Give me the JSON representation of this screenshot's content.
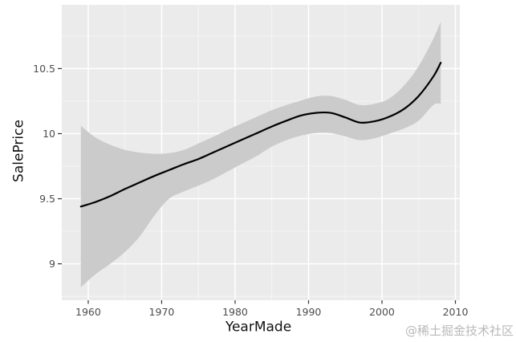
{
  "watermark": {
    "text": "@稀土掘金技术社区"
  },
  "chart_data": {
    "type": "line",
    "title": "",
    "xlabel": "YearMade",
    "ylabel": "SalePrice",
    "legend": false,
    "grid": true,
    "xlim": [
      1956.4,
      2010.6
    ],
    "ylim": [
      8.72,
      10.99
    ],
    "x_ticks": {
      "values": [
        1960,
        1970,
        1980,
        1990,
        2000,
        2010
      ],
      "labels": [
        "1960",
        "1970",
        "1980",
        "1990",
        "2000",
        "2010"
      ]
    },
    "y_ticks": {
      "values": [
        9,
        9.5,
        10,
        10.5
      ],
      "labels": [
        "9",
        "9.5",
        "10",
        "10.5"
      ]
    },
    "x_minor": [
      1965,
      1975,
      1985,
      1995,
      2005
    ],
    "y_minor": [
      8.75,
      9.25,
      9.75,
      10.25,
      10.75
    ],
    "x": [
      1959,
      1961,
      1963,
      1965,
      1967,
      1969,
      1971,
      1973,
      1975,
      1977,
      1979,
      1981,
      1983,
      1985,
      1987,
      1989,
      1991,
      1993,
      1995,
      1997,
      1999,
      2001,
      2003,
      2005,
      2007,
      2008
    ],
    "series": [
      {
        "name": "smooth-fit",
        "values": [
          9.44,
          9.475,
          9.52,
          9.575,
          9.625,
          9.675,
          9.72,
          9.765,
          9.805,
          9.855,
          9.905,
          9.955,
          10.005,
          10.055,
          10.1,
          10.14,
          10.16,
          10.16,
          10.125,
          10.085,
          10.095,
          10.13,
          10.19,
          10.29,
          10.44,
          10.545
        ]
      },
      {
        "name": "ci-upper",
        "values": [
          10.06,
          9.97,
          9.915,
          9.875,
          9.855,
          9.845,
          9.85,
          9.875,
          9.925,
          9.975,
          10.03,
          10.08,
          10.13,
          10.18,
          10.22,
          10.255,
          10.285,
          10.29,
          10.26,
          10.22,
          10.23,
          10.27,
          10.37,
          10.52,
          10.73,
          10.86
        ]
      },
      {
        "name": "ci-lower",
        "values": [
          8.82,
          8.92,
          9.0,
          9.09,
          9.21,
          9.37,
          9.5,
          9.555,
          9.6,
          9.65,
          9.71,
          9.77,
          9.83,
          9.9,
          9.95,
          9.985,
          10.005,
          10.005,
          9.98,
          9.95,
          9.965,
          10.0,
          10.04,
          10.1,
          10.22,
          10.23
        ]
      }
    ],
    "colors": {
      "figure_bg": "#ffffff",
      "panel_bg": "#ebebeb",
      "grid_major": "#ffffff",
      "grid_minor": "#ffffff",
      "band_fill": "#cbcbcb",
      "line": "#000000",
      "tick_mark": "#333333",
      "tick_label": "#4d4d4d",
      "axis_title": "#111111",
      "watermark": "#b9b9b9"
    }
  }
}
